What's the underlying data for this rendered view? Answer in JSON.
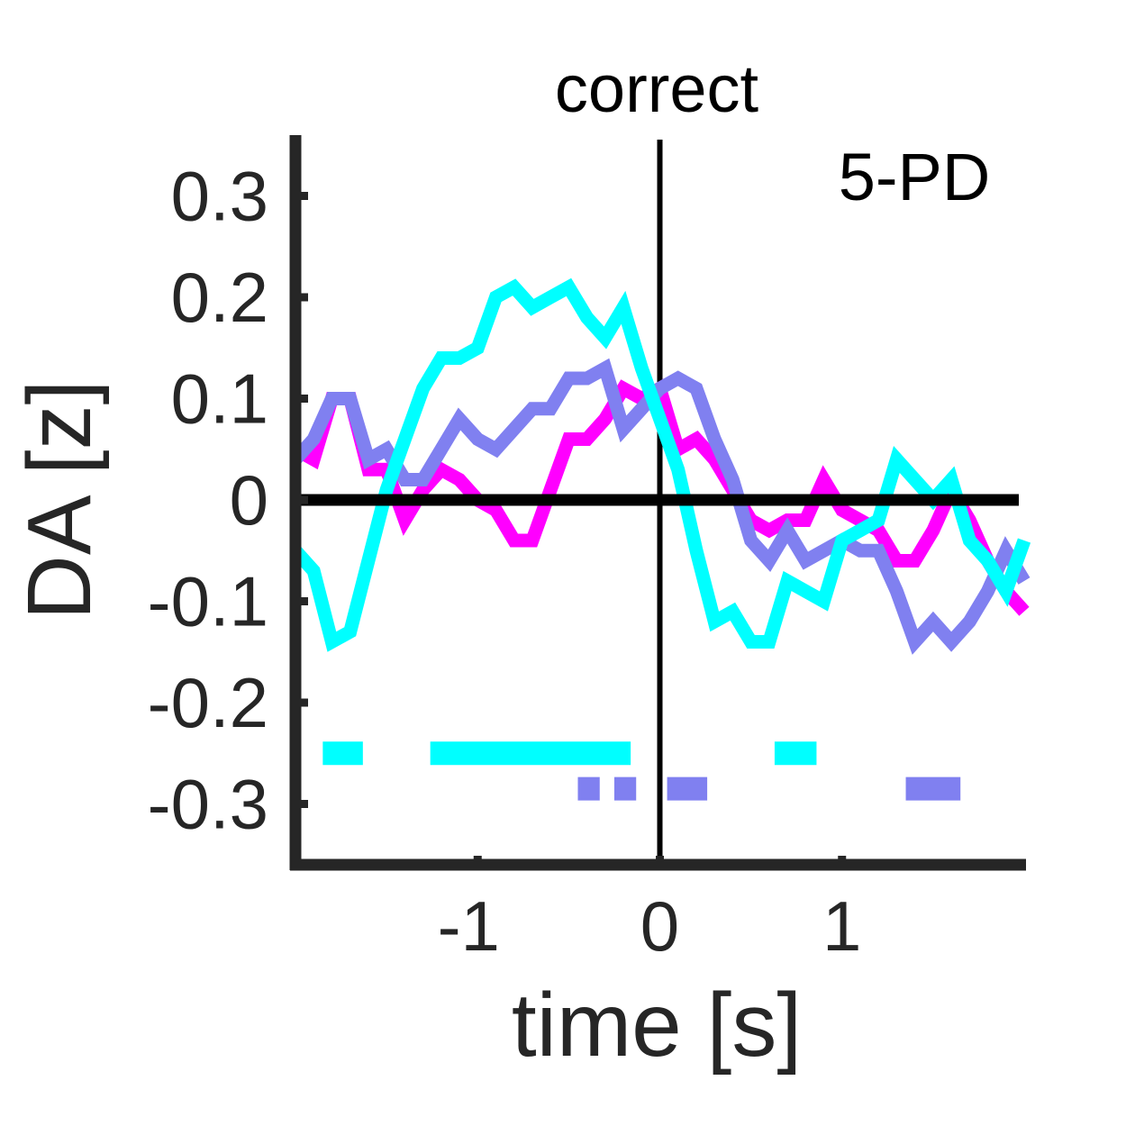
{
  "chart_data": {
    "type": "line",
    "title": "correct",
    "annotation": "5-PD",
    "xlabel": "time [s]",
    "ylabel": "DA [z]",
    "xlim": [
      -2,
      2
    ],
    "ylim": [
      -0.36,
      0.36
    ],
    "xticks": [
      -1,
      0,
      1
    ],
    "xtick_labels": [
      "-1",
      "0",
      "1"
    ],
    "yticks": [
      -0.3,
      -0.2,
      -0.1,
      0,
      0.1,
      0.2,
      0.3
    ],
    "ytick_labels": [
      "-0.3",
      "-0.2",
      "-0.1",
      "0",
      "0.1",
      "0.2",
      "0.3"
    ],
    "grid": false,
    "legend": "none",
    "reference_lines": {
      "vertical_x": 0,
      "horizontal_y": 0
    },
    "series": [
      {
        "color": "#ff00ff",
        "x": [
          -2.0,
          -1.9,
          -1.8,
          -1.7,
          -1.6,
          -1.5,
          -1.4,
          -1.3,
          -1.2,
          -1.1,
          -1.0,
          -0.9,
          -0.8,
          -0.7,
          -0.6,
          -0.5,
          -0.4,
          -0.3,
          -0.2,
          -0.1,
          0.0,
          0.1,
          0.2,
          0.3,
          0.4,
          0.5,
          0.6,
          0.7,
          0.8,
          0.9,
          1.0,
          1.1,
          1.2,
          1.3,
          1.4,
          1.5,
          1.6,
          1.7,
          1.8,
          1.9,
          2.0
        ],
        "y": [
          0.05,
          0.04,
          0.1,
          0.1,
          0.03,
          0.03,
          -0.02,
          0.01,
          0.03,
          0.02,
          0.0,
          -0.01,
          -0.04,
          -0.04,
          0.01,
          0.06,
          0.06,
          0.08,
          0.11,
          0.1,
          0.11,
          0.05,
          0.06,
          0.04,
          0.01,
          -0.02,
          -0.03,
          -0.02,
          -0.02,
          0.02,
          -0.01,
          -0.02,
          -0.03,
          -0.06,
          -0.06,
          -0.03,
          0.01,
          -0.02,
          -0.06,
          -0.09,
          -0.11
        ]
      },
      {
        "color": "#8080f0",
        "x": [
          -2.0,
          -1.9,
          -1.8,
          -1.7,
          -1.6,
          -1.5,
          -1.4,
          -1.3,
          -1.2,
          -1.1,
          -1.0,
          -0.9,
          -0.8,
          -0.7,
          -0.6,
          -0.5,
          -0.4,
          -0.3,
          -0.2,
          -0.1,
          0.0,
          0.1,
          0.2,
          0.3,
          0.4,
          0.5,
          0.6,
          0.7,
          0.8,
          0.9,
          1.0,
          1.1,
          1.2,
          1.3,
          1.4,
          1.5,
          1.6,
          1.7,
          1.8,
          1.9,
          2.0
        ],
        "y": [
          0.04,
          0.06,
          0.1,
          0.1,
          0.04,
          0.05,
          0.02,
          0.02,
          0.05,
          0.08,
          0.06,
          0.05,
          0.07,
          0.09,
          0.09,
          0.12,
          0.12,
          0.13,
          0.07,
          0.09,
          0.11,
          0.12,
          0.11,
          0.06,
          0.02,
          -0.04,
          -0.06,
          -0.03,
          -0.06,
          -0.05,
          -0.04,
          -0.05,
          -0.05,
          -0.09,
          -0.14,
          -0.12,
          -0.14,
          -0.12,
          -0.09,
          -0.05,
          -0.08
        ]
      },
      {
        "color": "#00ffff",
        "x": [
          -2.0,
          -1.9,
          -1.8,
          -1.7,
          -1.6,
          -1.5,
          -1.4,
          -1.3,
          -1.2,
          -1.1,
          -1.0,
          -0.9,
          -0.8,
          -0.7,
          -0.6,
          -0.5,
          -0.4,
          -0.3,
          -0.2,
          -0.1,
          0.0,
          0.1,
          0.2,
          0.3,
          0.4,
          0.5,
          0.6,
          0.7,
          0.8,
          0.9,
          1.0,
          1.1,
          1.2,
          1.3,
          1.4,
          1.5,
          1.6,
          1.7,
          1.8,
          1.9,
          2.0
        ],
        "y": [
          -0.05,
          -0.07,
          -0.14,
          -0.13,
          -0.06,
          0.01,
          0.06,
          0.11,
          0.14,
          0.14,
          0.15,
          0.2,
          0.21,
          0.19,
          0.2,
          0.21,
          0.18,
          0.16,
          0.19,
          0.13,
          0.08,
          0.03,
          -0.05,
          -0.12,
          -0.11,
          -0.14,
          -0.14,
          -0.08,
          -0.09,
          -0.1,
          -0.04,
          -0.03,
          -0.02,
          0.04,
          0.02,
          0.0,
          0.02,
          -0.04,
          -0.06,
          -0.09,
          -0.04
        ]
      }
    ],
    "significance_bars": [
      {
        "color": "#00ffff",
        "y": -0.25,
        "intervals": [
          [
            -1.85,
            -1.63
          ],
          [
            -1.26,
            -0.16
          ],
          [
            0.63,
            0.86
          ]
        ]
      },
      {
        "color": "#8080f0",
        "y": -0.285,
        "intervals": [
          [
            -0.45,
            -0.33
          ],
          [
            -0.25,
            -0.13
          ],
          [
            0.04,
            0.26
          ],
          [
            1.35,
            1.65
          ]
        ]
      }
    ]
  }
}
